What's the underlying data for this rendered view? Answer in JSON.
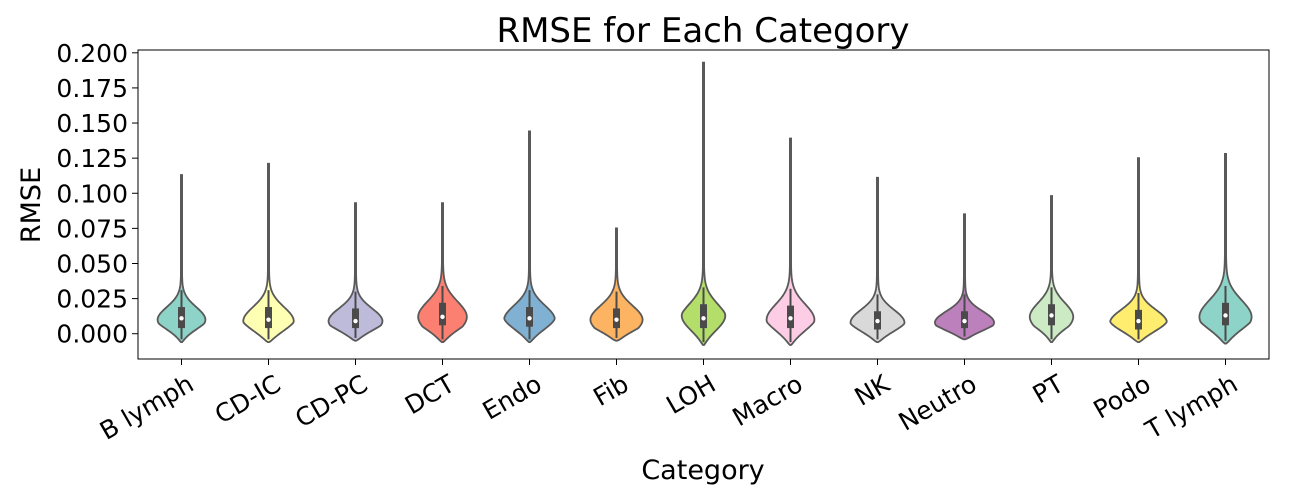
{
  "chart_data": {
    "type": "violin",
    "title": "RMSE for Each Category",
    "xlabel": "Category",
    "ylabel": "RMSE",
    "ylim": [
      -0.018,
      0.202
    ],
    "yticks": [
      "0.000",
      "0.025",
      "0.050",
      "0.075",
      "0.100",
      "0.125",
      "0.150",
      "0.175",
      "0.200"
    ],
    "grid": false,
    "legend": "none",
    "categories": [
      {
        "name": "B lymph",
        "color": "#8dd3c7",
        "min": -0.006,
        "max": 0.113,
        "q1": 0.004,
        "median": 0.011,
        "q3": 0.019,
        "width": 0.55,
        "mode": 0.01,
        "spread": 0.009
      },
      {
        "name": "CD-IC",
        "color": "#ffffb3",
        "min": -0.006,
        "max": 0.121,
        "q1": 0.004,
        "median": 0.01,
        "q3": 0.019,
        "width": 0.58,
        "mode": 0.009,
        "spread": 0.01
      },
      {
        "name": "CD-PC",
        "color": "#bebada",
        "min": -0.005,
        "max": 0.093,
        "q1": 0.004,
        "median": 0.009,
        "q3": 0.018,
        "width": 0.62,
        "mode": 0.009,
        "spread": 0.009
      },
      {
        "name": "DCT",
        "color": "#fb8072",
        "min": -0.006,
        "max": 0.093,
        "q1": 0.006,
        "median": 0.012,
        "q3": 0.022,
        "width": 0.56,
        "mode": 0.012,
        "spread": 0.011
      },
      {
        "name": "Endo",
        "color": "#80b1d3",
        "min": -0.006,
        "max": 0.144,
        "q1": 0.005,
        "median": 0.011,
        "q3": 0.019,
        "width": 0.58,
        "mode": 0.01,
        "spread": 0.01
      },
      {
        "name": "Fib",
        "color": "#fdb462",
        "min": -0.005,
        "max": 0.075,
        "q1": 0.004,
        "median": 0.01,
        "q3": 0.018,
        "width": 0.6,
        "mode": 0.01,
        "spread": 0.01
      },
      {
        "name": "LOH",
        "color": "#b3de69",
        "min": -0.008,
        "max": 0.193,
        "q1": 0.004,
        "median": 0.011,
        "q3": 0.021,
        "width": 0.5,
        "mode": 0.01,
        "spread": 0.011
      },
      {
        "name": "Macro",
        "color": "#fccde5",
        "min": -0.008,
        "max": 0.139,
        "q1": 0.004,
        "median": 0.011,
        "q3": 0.02,
        "width": 0.55,
        "mode": 0.01,
        "spread": 0.011
      },
      {
        "name": "NK",
        "color": "#d9d9d9",
        "min": -0.006,
        "max": 0.111,
        "q1": 0.003,
        "median": 0.009,
        "q3": 0.016,
        "width": 0.62,
        "mode": 0.008,
        "spread": 0.009
      },
      {
        "name": "Neutro",
        "color": "#bc80bd",
        "min": -0.004,
        "max": 0.085,
        "q1": 0.004,
        "median": 0.009,
        "q3": 0.016,
        "width": 0.68,
        "mode": 0.008,
        "spread": 0.008
      },
      {
        "name": "PT",
        "color": "#ccebc5",
        "min": -0.006,
        "max": 0.098,
        "q1": 0.006,
        "median": 0.013,
        "q3": 0.021,
        "width": 0.5,
        "mode": 0.012,
        "spread": 0.01
      },
      {
        "name": "Podo",
        "color": "#ffed6f",
        "min": -0.006,
        "max": 0.125,
        "q1": 0.003,
        "median": 0.009,
        "q3": 0.017,
        "width": 0.65,
        "mode": 0.008,
        "spread": 0.009
      },
      {
        "name": "T lymph",
        "color": "#8dd3c7",
        "min": -0.007,
        "max": 0.128,
        "q1": 0.006,
        "median": 0.013,
        "q3": 0.022,
        "width": 0.6,
        "mode": 0.012,
        "spread": 0.012
      }
    ]
  }
}
